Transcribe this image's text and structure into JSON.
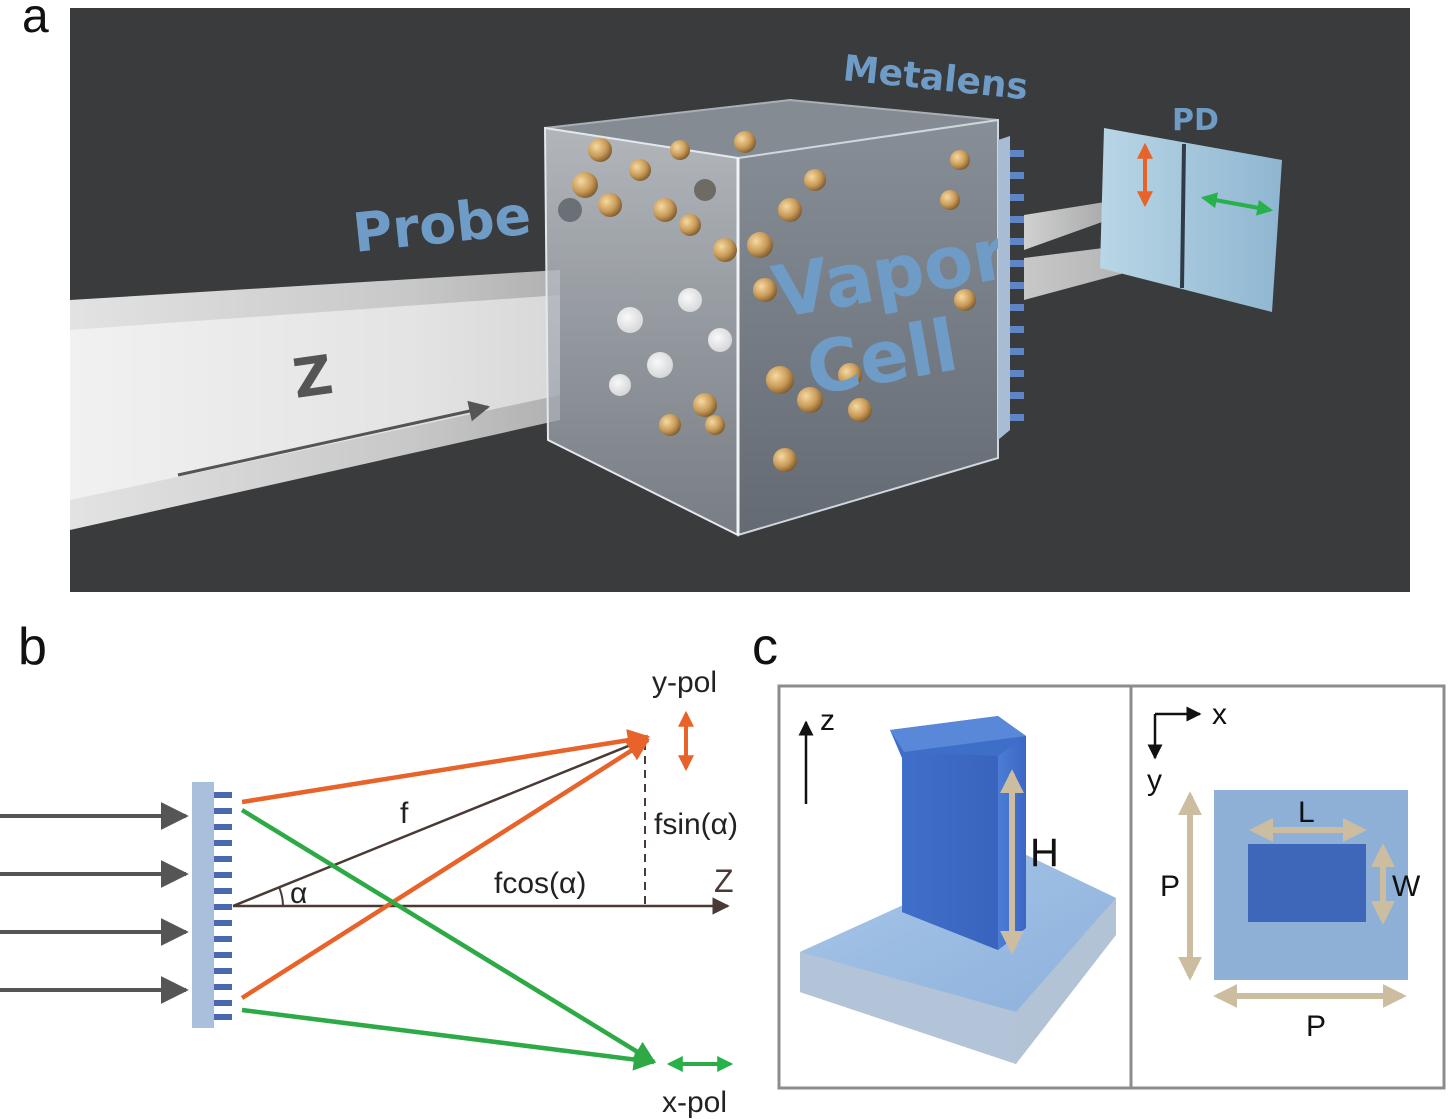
{
  "panels": {
    "a": {
      "letter": "a",
      "probe_label": "Probe",
      "z_label": "Z",
      "metalens_label": "Metalens",
      "vapor_label": "Vapor",
      "cell_label": "Cell",
      "pd_label": "PD",
      "colors": {
        "background": "#3a3b3d",
        "label_blue": "#6f9cc7",
        "orange": "#e8632a",
        "green": "#27b14a"
      }
    },
    "b": {
      "letter": "b",
      "y_pol": "y-pol",
      "x_pol": "x-pol",
      "f": "f",
      "alpha": "α",
      "f_sin": "fsin(α)",
      "f_cos": "fcos(α)",
      "z_axis": "Z",
      "colors": {
        "orange": "#e8632a",
        "green": "#2daa45",
        "axis": "#4a3a35",
        "arrow": "#555555",
        "lens": "#a8c0dc",
        "teeth": "#4a68b0"
      }
    },
    "c": {
      "letter": "c",
      "z_axis": "z",
      "x_axis": "x",
      "y_axis": "y",
      "H": "H",
      "L": "L",
      "W": "W",
      "P_vertical": "P",
      "P_horizontal": "P",
      "colors": {
        "pillar": "#3e6fc8",
        "substrate": "#9dbde2",
        "dimension": "#cdbda0",
        "frame": "#8c8c8c"
      }
    }
  }
}
